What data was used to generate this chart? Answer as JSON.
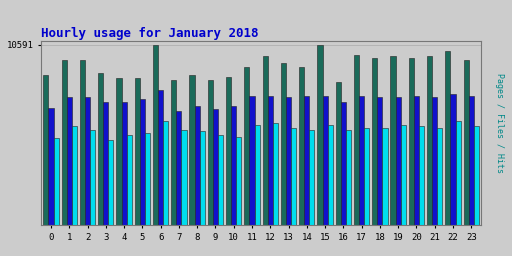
{
  "title": "Hourly usage for January 2018",
  "hours": [
    0,
    1,
    2,
    3,
    4,
    5,
    6,
    7,
    8,
    9,
    10,
    11,
    12,
    13,
    14,
    15,
    16,
    17,
    18,
    19,
    20,
    21,
    22,
    23
  ],
  "hits": [
    8800,
    9700,
    9700,
    8900,
    8650,
    8650,
    10591,
    8500,
    8800,
    8500,
    8700,
    9300,
    9900,
    9500,
    9300,
    10591,
    8400,
    10000,
    9800,
    9900,
    9800,
    9900,
    10200,
    9700
  ],
  "files": [
    6900,
    7500,
    7500,
    7200,
    7200,
    7400,
    7900,
    6700,
    7000,
    6800,
    7000,
    7600,
    7600,
    7500,
    7600,
    7600,
    7200,
    7600,
    7500,
    7500,
    7600,
    7500,
    7700,
    7600
  ],
  "pages": [
    5100,
    5800,
    5600,
    5000,
    5300,
    5400,
    6100,
    5600,
    5500,
    5300,
    5200,
    5900,
    6000,
    5700,
    5600,
    5900,
    5600,
    5700,
    5700,
    5900,
    5800,
    5700,
    6100,
    5800
  ],
  "hits_color": "#1a6b5a",
  "files_color": "#1111cc",
  "pages_color": "#00ddee",
  "bg_color": "#cccccc",
  "plot_bg_color": "#cccccc",
  "title_color": "#0000cc",
  "ylabel": "Pages / Files / Hits",
  "max_label": "10591",
  "ylim_min": 0,
  "ylim_max": 10800,
  "bar_width": 0.28
}
